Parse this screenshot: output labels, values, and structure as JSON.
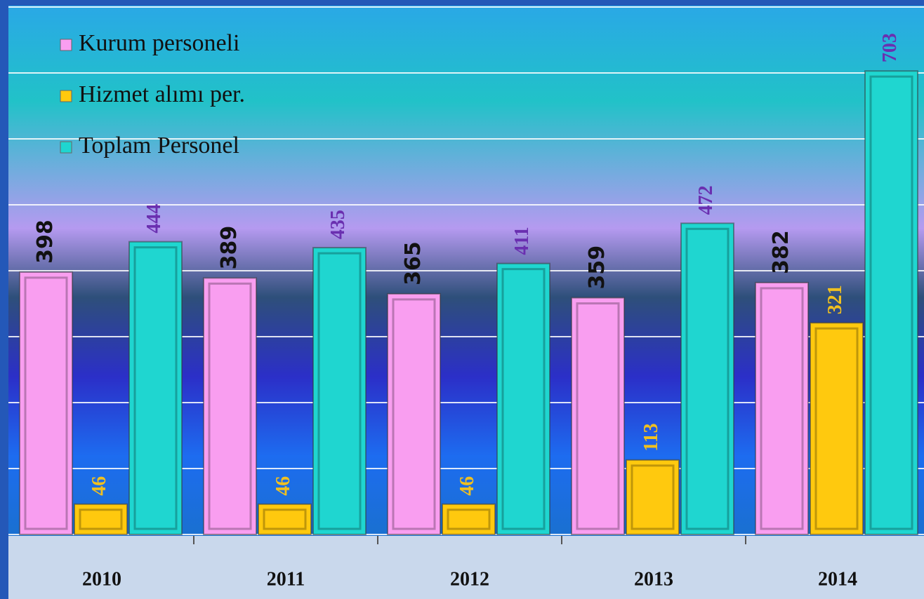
{
  "chart_data": {
    "type": "bar",
    "categories": [
      "2010",
      "2011",
      "2012",
      "2013",
      "2014"
    ],
    "series": [
      {
        "name": "Kurum personeli",
        "color": "#f99ef0",
        "values": [
          398,
          389,
          365,
          359,
          382
        ]
      },
      {
        "name": "Hizmet alımı per.",
        "color": "#ffc90e",
        "values": [
          46,
          46,
          46,
          113,
          321
        ]
      },
      {
        "name": "Toplam Personel",
        "color": "#1fd6d0",
        "values": [
          444,
          435,
          411,
          472,
          703
        ]
      }
    ],
    "ylim": [
      0,
      800
    ],
    "yticks": [
      0,
      100,
      200,
      300,
      400,
      500,
      600,
      700,
      800
    ],
    "grid": true
  }
}
